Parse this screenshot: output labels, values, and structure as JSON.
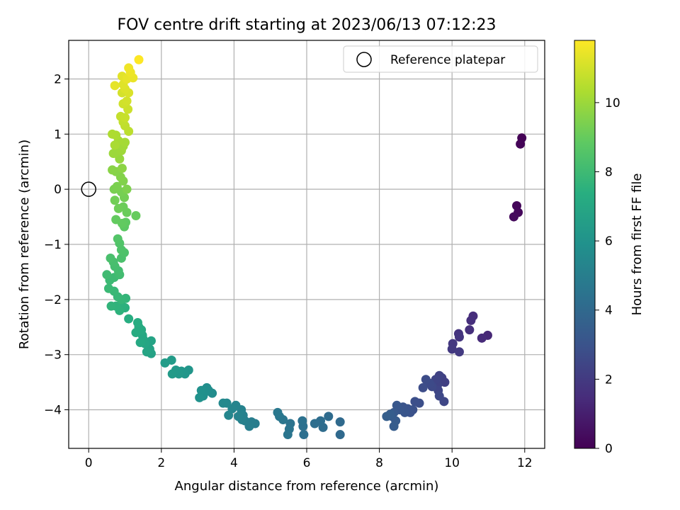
{
  "chart_data": {
    "type": "scatter",
    "title": "FOV centre drift starting at 2023/06/13 07:12:23",
    "xlabel": "Angular distance from reference (arcmin)",
    "ylabel": "Rotation from reference (arcmin)",
    "xlim": [
      -0.55,
      12.55
    ],
    "ylim": [
      -4.7,
      2.7
    ],
    "xticks": [
      "0",
      "2",
      "4",
      "6",
      "8",
      "10",
      "12"
    ],
    "yticks": [
      "−4",
      "−3",
      "−2",
      "−1",
      "0",
      "1",
      "2"
    ],
    "grid": true,
    "legend": {
      "position": "top-right",
      "entries": [
        "Reference platepar"
      ]
    },
    "reference_point": {
      "x": 0,
      "y": 0
    },
    "colorbar": {
      "label": "Hours from first FF file",
      "range": [
        0,
        11.8
      ],
      "ticks": [
        "0",
        "2",
        "4",
        "6",
        "8",
        "10"
      ],
      "colormap": "viridis"
    },
    "series": [
      {
        "points": [
          [
            11.92,
            0.93,
            0.05
          ],
          [
            11.88,
            0.82,
            0.1
          ],
          [
            11.78,
            -0.3,
            0.2
          ],
          [
            11.82,
            -0.42,
            0.25
          ],
          [
            11.7,
            -0.5,
            0.3
          ],
          [
            10.98,
            -2.65,
            1.3
          ],
          [
            10.82,
            -2.7,
            1.4
          ],
          [
            10.58,
            -2.3,
            1.5
          ],
          [
            10.52,
            -2.38,
            1.55
          ],
          [
            10.48,
            -2.55,
            1.6
          ],
          [
            10.18,
            -2.62,
            1.75
          ],
          [
            10.2,
            -2.68,
            1.8
          ],
          [
            10.02,
            -2.8,
            1.9
          ],
          [
            10.0,
            -2.9,
            1.95
          ],
          [
            10.2,
            -2.95,
            2.0
          ],
          [
            9.8,
            -3.5,
            2.2
          ],
          [
            9.72,
            -3.42,
            2.25
          ],
          [
            9.65,
            -3.38,
            2.3
          ],
          [
            9.6,
            -3.55,
            2.35
          ],
          [
            9.55,
            -3.45,
            2.4
          ],
          [
            9.62,
            -3.65,
            2.45
          ],
          [
            9.78,
            -3.85,
            2.5
          ],
          [
            9.65,
            -3.75,
            2.55
          ],
          [
            9.45,
            -3.58,
            2.6
          ],
          [
            9.38,
            -3.52,
            2.65
          ],
          [
            9.28,
            -3.45,
            2.7
          ],
          [
            9.2,
            -3.6,
            2.75
          ],
          [
            9.1,
            -3.88,
            2.8
          ],
          [
            8.98,
            -3.85,
            2.85
          ],
          [
            8.92,
            -4.0,
            2.9
          ],
          [
            8.85,
            -4.05,
            2.95
          ],
          [
            8.78,
            -3.98,
            3.0
          ],
          [
            8.65,
            -3.95,
            3.05
          ],
          [
            8.7,
            -4.05,
            3.1
          ],
          [
            8.55,
            -4.0,
            3.15
          ],
          [
            8.48,
            -3.92,
            3.2
          ],
          [
            8.4,
            -4.05,
            3.25
          ],
          [
            8.35,
            -4.12,
            3.3
          ],
          [
            8.45,
            -4.2,
            3.35
          ],
          [
            8.4,
            -4.3,
            3.4
          ],
          [
            8.3,
            -4.08,
            3.45
          ],
          [
            8.2,
            -4.12,
            3.5
          ],
          [
            6.92,
            -4.45,
            4.0
          ],
          [
            6.92,
            -4.22,
            4.05
          ],
          [
            6.6,
            -4.12,
            4.1
          ],
          [
            6.45,
            -4.32,
            4.15
          ],
          [
            6.38,
            -4.2,
            4.2
          ],
          [
            6.22,
            -4.25,
            4.25
          ],
          [
            5.92,
            -4.45,
            4.3
          ],
          [
            5.9,
            -4.3,
            4.35
          ],
          [
            5.88,
            -4.2,
            4.4
          ],
          [
            5.55,
            -4.25,
            4.45
          ],
          [
            5.52,
            -4.35,
            4.5
          ],
          [
            5.48,
            -4.45,
            4.55
          ],
          [
            5.35,
            -4.18,
            4.6
          ],
          [
            5.25,
            -4.12,
            4.65
          ],
          [
            5.2,
            -4.05,
            4.7
          ],
          [
            4.58,
            -4.25,
            4.9
          ],
          [
            4.48,
            -4.22,
            4.95
          ],
          [
            4.42,
            -4.3,
            5.0
          ],
          [
            4.3,
            -4.2,
            5.05
          ],
          [
            4.25,
            -4.1,
            5.1
          ],
          [
            4.22,
            -4.18,
            5.15
          ],
          [
            4.2,
            -4.0,
            5.2
          ],
          [
            4.12,
            -4.12,
            5.25
          ],
          [
            4.05,
            -3.92,
            5.3
          ],
          [
            3.95,
            -3.98,
            5.35
          ],
          [
            3.85,
            -4.1,
            5.4
          ],
          [
            3.8,
            -3.88,
            5.45
          ],
          [
            3.7,
            -3.88,
            5.5
          ],
          [
            3.4,
            -3.7,
            5.65
          ],
          [
            3.3,
            -3.65,
            5.7
          ],
          [
            3.25,
            -3.6,
            5.75
          ],
          [
            3.2,
            -3.68,
            5.8
          ],
          [
            3.15,
            -3.75,
            5.85
          ],
          [
            3.1,
            -3.65,
            5.9
          ],
          [
            3.05,
            -3.78,
            5.95
          ],
          [
            2.75,
            -3.28,
            6.1
          ],
          [
            2.65,
            -3.35,
            6.15
          ],
          [
            2.55,
            -3.3,
            6.2
          ],
          [
            2.48,
            -3.35,
            6.25
          ],
          [
            2.4,
            -3.28,
            6.3
          ],
          [
            2.3,
            -3.35,
            6.35
          ],
          [
            2.28,
            -3.1,
            6.4
          ],
          [
            2.1,
            -3.15,
            6.45
          ],
          [
            1.72,
            -2.98,
            6.7
          ],
          [
            1.68,
            -2.9,
            6.75
          ],
          [
            1.72,
            -2.75,
            6.8
          ],
          [
            1.6,
            -2.95,
            6.85
          ],
          [
            1.55,
            -2.8,
            6.9
          ],
          [
            1.5,
            -2.72,
            6.95
          ],
          [
            1.48,
            -2.65,
            7.0
          ],
          [
            1.42,
            -2.78,
            7.05
          ],
          [
            1.45,
            -2.55,
            7.1
          ],
          [
            1.38,
            -2.5,
            7.15
          ],
          [
            1.3,
            -2.6,
            7.2
          ],
          [
            1.35,
            -2.42,
            7.25
          ],
          [
            1.1,
            -2.35,
            7.3
          ],
          [
            1.0,
            -2.15,
            7.45
          ],
          [
            0.92,
            -2.12,
            7.5
          ],
          [
            0.85,
            -2.2,
            7.55
          ],
          [
            0.75,
            -2.12,
            7.6
          ],
          [
            0.62,
            -2.12,
            7.65
          ],
          [
            1.02,
            -1.98,
            7.7
          ],
          [
            0.9,
            -2.0,
            7.75
          ],
          [
            0.8,
            -1.95,
            7.8
          ],
          [
            0.7,
            -1.85,
            7.85
          ],
          [
            0.55,
            -1.8,
            7.9
          ],
          [
            0.58,
            -1.65,
            7.95
          ],
          [
            0.7,
            -1.6,
            8.0
          ],
          [
            0.5,
            -1.55,
            8.05
          ],
          [
            0.85,
            -1.55,
            8.1
          ],
          [
            0.82,
            -1.48,
            8.15
          ],
          [
            0.72,
            -1.4,
            8.2
          ],
          [
            0.68,
            -1.32,
            8.25
          ],
          [
            0.6,
            -1.25,
            8.3
          ],
          [
            0.9,
            -1.25,
            8.35
          ],
          [
            0.98,
            -1.15,
            8.4
          ],
          [
            0.9,
            -1.1,
            8.45
          ],
          [
            0.85,
            -0.98,
            8.5
          ],
          [
            0.8,
            -0.9,
            8.55
          ],
          [
            0.98,
            -0.68,
            8.8
          ],
          [
            1.02,
            -0.6,
            8.85
          ],
          [
            0.92,
            -0.62,
            8.9
          ],
          [
            0.75,
            -0.55,
            8.95
          ],
          [
            1.3,
            -0.48,
            9.0
          ],
          [
            1.05,
            -0.42,
            9.05
          ],
          [
            0.95,
            -0.32,
            9.1
          ],
          [
            0.82,
            -0.35,
            9.15
          ],
          [
            0.72,
            -0.2,
            9.2
          ],
          [
            0.98,
            -0.15,
            9.25
          ],
          [
            0.9,
            -0.05,
            9.3
          ],
          [
            0.7,
            0.0,
            9.35
          ],
          [
            0.78,
            0.05,
            9.4
          ],
          [
            1.05,
            0.0,
            9.45
          ],
          [
            0.95,
            0.15,
            9.5
          ],
          [
            0.88,
            0.22,
            9.55
          ],
          [
            0.75,
            0.32,
            9.6
          ],
          [
            0.65,
            0.35,
            9.65
          ],
          [
            0.92,
            0.38,
            9.7
          ],
          [
            0.85,
            0.55,
            9.9
          ],
          [
            0.75,
            0.65,
            9.95
          ],
          [
            0.68,
            0.65,
            10.0
          ],
          [
            0.9,
            0.7,
            10.05
          ],
          [
            0.95,
            0.78,
            10.1
          ],
          [
            1.0,
            0.85,
            10.15
          ],
          [
            0.82,
            0.88,
            10.2
          ],
          [
            0.72,
            0.8,
            10.25
          ],
          [
            0.75,
            0.98,
            10.3
          ],
          [
            0.65,
            1.0,
            10.35
          ],
          [
            1.1,
            1.05,
            10.6
          ],
          [
            1.0,
            1.15,
            10.65
          ],
          [
            0.95,
            1.22,
            10.7
          ],
          [
            0.88,
            1.32,
            10.75
          ],
          [
            1.0,
            1.3,
            10.8
          ],
          [
            1.08,
            1.45,
            10.9
          ],
          [
            0.95,
            1.55,
            10.95
          ],
          [
            1.05,
            1.6,
            11.0
          ],
          [
            0.92,
            1.75,
            11.05
          ],
          [
            1.1,
            1.75,
            11.15
          ],
          [
            1.0,
            1.82,
            11.2
          ],
          [
            0.95,
            1.9,
            11.25
          ],
          [
            0.92,
            2.05,
            11.3
          ],
          [
            0.72,
            1.88,
            11.35
          ],
          [
            1.05,
            2.0,
            11.4
          ],
          [
            1.22,
            2.02,
            11.45
          ],
          [
            1.15,
            2.12,
            11.5
          ],
          [
            1.1,
            2.2,
            11.55
          ],
          [
            1.38,
            2.35,
            11.8
          ]
        ]
      }
    ]
  }
}
